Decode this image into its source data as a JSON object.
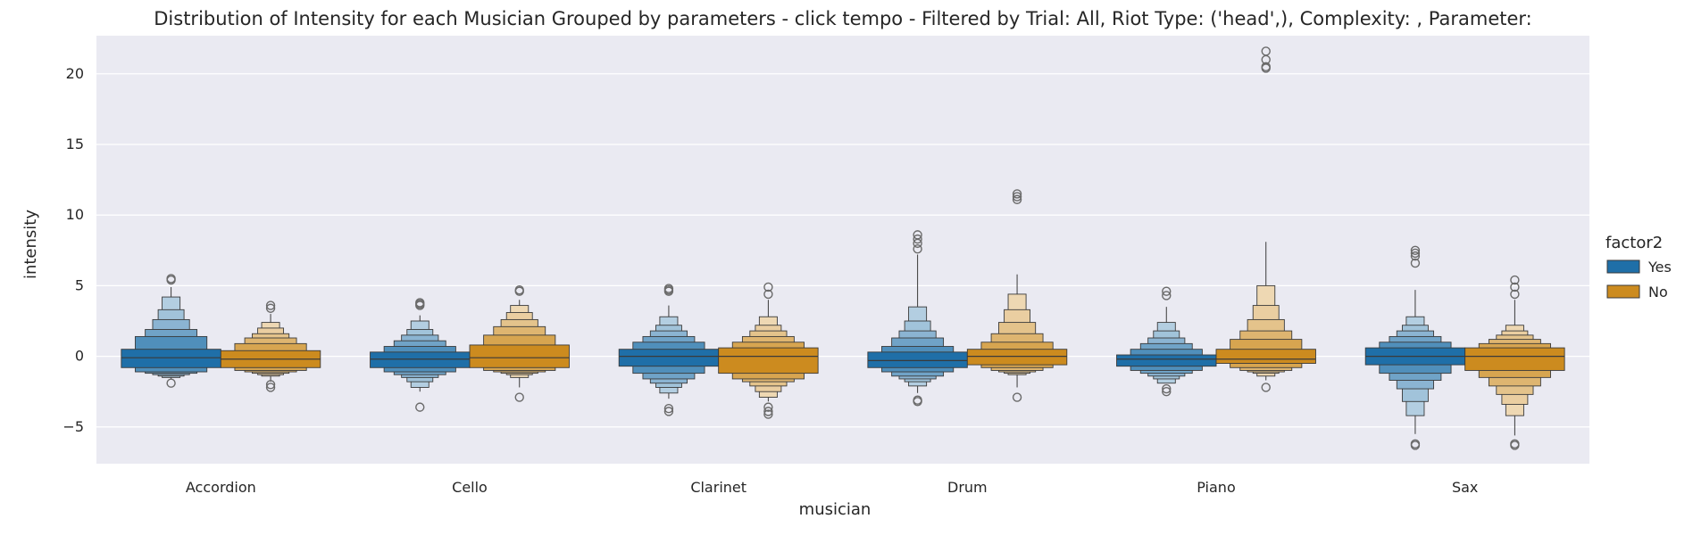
{
  "chart_data": {
    "type": "boxen",
    "title": "Distribution of Intensity for each Musician Grouped by parameters - click tempo - Filtered by Trial: All, Riot Type: ('head',), Complexity: , Parameter:",
    "xlabel": "musician",
    "ylabel": "intensity",
    "categories": [
      "Accordion",
      "Cello",
      "Clarinet",
      "Drum",
      "Piano",
      "Sax"
    ],
    "ylim": [
      -7.6,
      22.7
    ],
    "yticks": [
      -5,
      0,
      5,
      10,
      15,
      20
    ],
    "ytick_labels": [
      "−5",
      "0",
      "5",
      "10",
      "15",
      "20"
    ],
    "grid": true,
    "legend": {
      "title": "factor2",
      "placement": "right",
      "entries": [
        {
          "label": "Yes",
          "color": "#1f6fa8"
        },
        {
          "label": "No",
          "color": "#cc8b1f"
        }
      ]
    },
    "series": [
      {
        "name": "Yes",
        "color": "#1f6fa8",
        "median": [
          -0.1,
          -0.2,
          0.0,
          -0.3,
          -0.2,
          0.0
        ],
        "levels": [
          [
            [
              -0.8,
              0.5
            ],
            [
              -1.1,
              1.4
            ],
            [
              -1.2,
              1.9
            ],
            [
              -1.3,
              2.6
            ],
            [
              -1.4,
              3.3
            ],
            [
              -1.5,
              4.2
            ]
          ],
          [
            [
              -0.8,
              0.3
            ],
            [
              -1.1,
              0.7
            ],
            [
              -1.3,
              1.1
            ],
            [
              -1.5,
              1.5
            ],
            [
              -1.8,
              1.9
            ],
            [
              -2.2,
              2.5
            ]
          ],
          [
            [
              -0.7,
              0.5
            ],
            [
              -1.2,
              1.0
            ],
            [
              -1.6,
              1.4
            ],
            [
              -1.9,
              1.8
            ],
            [
              -2.2,
              2.2
            ],
            [
              -2.6,
              2.8
            ]
          ],
          [
            [
              -0.8,
              0.3
            ],
            [
              -1.1,
              0.7
            ],
            [
              -1.4,
              1.3
            ],
            [
              -1.6,
              1.8
            ],
            [
              -1.8,
              2.5
            ],
            [
              -2.1,
              3.5
            ]
          ],
          [
            [
              -0.7,
              0.1
            ],
            [
              -1.0,
              0.5
            ],
            [
              -1.2,
              0.9
            ],
            [
              -1.4,
              1.3
            ],
            [
              -1.6,
              1.8
            ],
            [
              -1.9,
              2.4
            ]
          ],
          [
            [
              -0.6,
              0.6
            ],
            [
              -1.2,
              1.0
            ],
            [
              -1.7,
              1.4
            ],
            [
              -2.3,
              1.8
            ],
            [
              -3.2,
              2.2
            ],
            [
              -4.2,
              2.8
            ]
          ]
        ],
        "whisker": [
          [
            -1.6,
            4.9
          ],
          [
            -2.5,
            2.9
          ],
          [
            -3.0,
            3.6
          ],
          [
            -2.6,
            7.2
          ],
          [
            -1.9,
            3.5
          ],
          [
            -5.5,
            4.7
          ]
        ],
        "outliers": [
          [
            -1.9,
            5.4,
            5.5
          ],
          [
            -3.6,
            3.6,
            3.7,
            3.8
          ],
          [
            -3.9,
            -3.7,
            4.6,
            4.7,
            4.8
          ],
          [
            -3.2,
            -3.1,
            7.6,
            8.0,
            8.3,
            8.6
          ],
          [
            -2.5,
            -2.3,
            4.3,
            4.6
          ],
          [
            -6.3,
            -6.2,
            6.6,
            7.1,
            7.3,
            7.5
          ]
        ]
      },
      {
        "name": "No",
        "color": "#cc8b1f",
        "median": [
          -0.2,
          -0.1,
          0.0,
          0.0,
          -0.2,
          0.0
        ],
        "levels": [
          [
            [
              -0.8,
              0.4
            ],
            [
              -1.0,
              0.9
            ],
            [
              -1.1,
              1.3
            ],
            [
              -1.2,
              1.6
            ],
            [
              -1.3,
              2.0
            ],
            [
              -1.4,
              2.4
            ]
          ],
          [
            [
              -0.8,
              0.8
            ],
            [
              -1.0,
              1.5
            ],
            [
              -1.1,
              2.1
            ],
            [
              -1.2,
              2.6
            ],
            [
              -1.3,
              3.1
            ],
            [
              -1.5,
              3.6
            ]
          ],
          [
            [
              -1.2,
              0.6
            ],
            [
              -1.6,
              1.0
            ],
            [
              -1.8,
              1.4
            ],
            [
              -2.1,
              1.8
            ],
            [
              -2.5,
              2.2
            ],
            [
              -2.9,
              2.8
            ]
          ],
          [
            [
              -0.6,
              0.5
            ],
            [
              -0.8,
              1.0
            ],
            [
              -1.0,
              1.6
            ],
            [
              -1.1,
              2.4
            ],
            [
              -1.2,
              3.3
            ],
            [
              -1.3,
              4.4
            ]
          ],
          [
            [
              -0.5,
              0.5
            ],
            [
              -0.8,
              1.2
            ],
            [
              -1.0,
              1.8
            ],
            [
              -1.1,
              2.6
            ],
            [
              -1.2,
              3.6
            ],
            [
              -1.4,
              5.0
            ]
          ],
          [
            [
              -1.0,
              0.6
            ],
            [
              -1.5,
              0.9
            ],
            [
              -2.1,
              1.2
            ],
            [
              -2.7,
              1.5
            ],
            [
              -3.4,
              1.8
            ],
            [
              -4.2,
              2.2
            ]
          ]
        ],
        "whisker": [
          [
            -1.8,
            3.0
          ],
          [
            -2.2,
            4.0
          ],
          [
            -3.2,
            4.0
          ],
          [
            -2.2,
            5.8
          ],
          [
            -1.7,
            8.1
          ],
          [
            -5.6,
            4.0
          ]
        ],
        "outliers": [
          [
            -2.2,
            -2.0,
            3.4,
            3.6
          ],
          [
            -2.9,
            4.6,
            4.7
          ],
          [
            -4.1,
            -3.9,
            -3.6,
            4.4,
            4.9
          ],
          [
            -2.9,
            11.1,
            11.3,
            11.5
          ],
          [
            -2.2,
            20.4,
            20.5,
            21.0,
            21.6
          ],
          [
            -6.3,
            -6.2,
            4.4,
            4.9,
            5.4
          ]
        ]
      }
    ]
  }
}
